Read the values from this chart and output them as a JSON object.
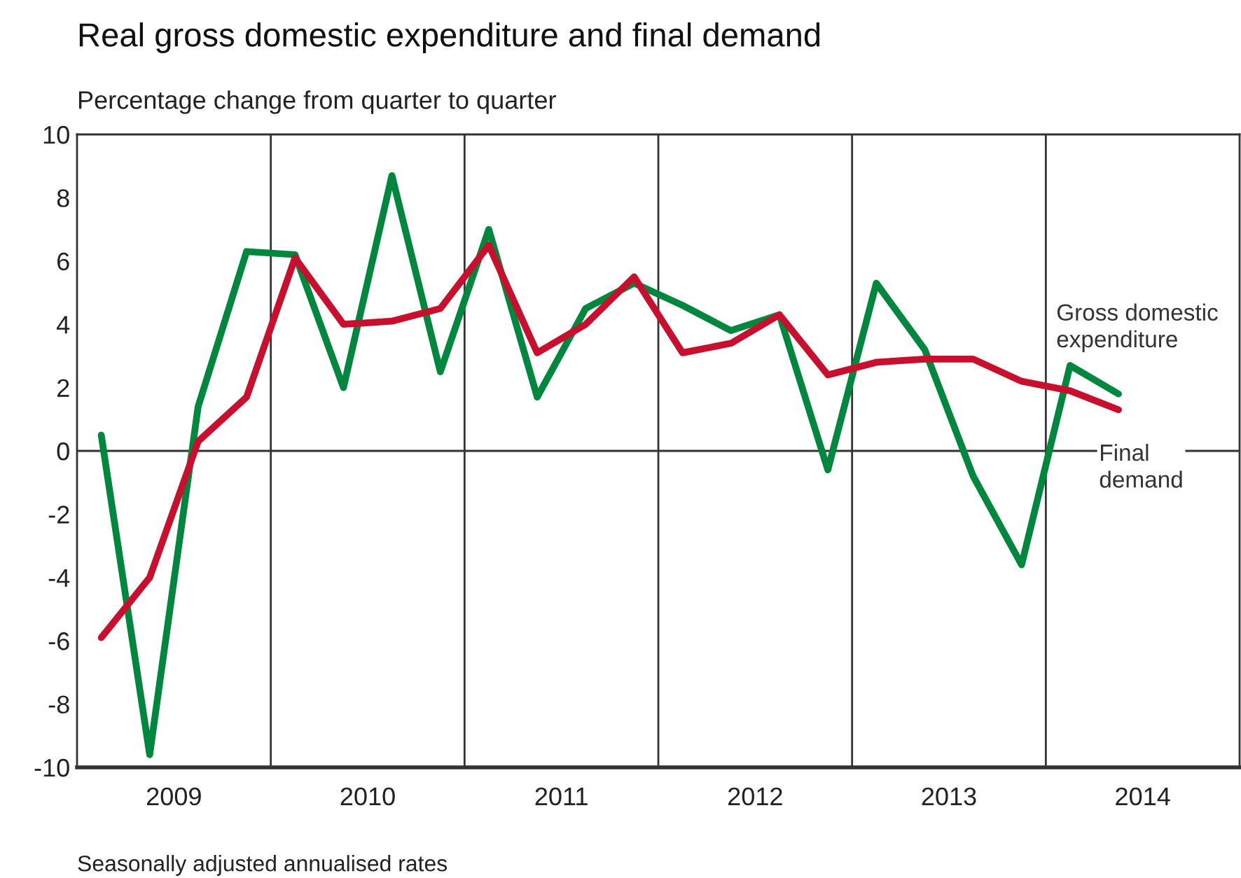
{
  "chart_data": {
    "type": "line",
    "title": "Real gross domestic expenditure and final demand",
    "ylabel": "Percentage change from quarter to quarter",
    "annotations": [
      "Seasonally adjusted annualised rates"
    ],
    "x": [
      2009.125,
      2009.375,
      2009.625,
      2009.875,
      2010.125,
      2010.375,
      2010.625,
      2010.875,
      2011.125,
      2011.375,
      2011.625,
      2011.875,
      2012.125,
      2012.375,
      2012.625,
      2012.875,
      2013.125,
      2013.375,
      2013.625,
      2013.875,
      2014.125,
      2014.375
    ],
    "series": [
      {
        "name": "Gross domestic expenditure",
        "color": "#00873e",
        "values": [
          0.5,
          -9.6,
          1.4,
          6.3,
          6.2,
          2.0,
          8.7,
          2.5,
          7.0,
          1.7,
          4.5,
          5.3,
          4.6,
          3.8,
          4.3,
          -0.6,
          5.3,
          3.2,
          -0.8,
          -3.6,
          2.7,
          1.8
        ]
      },
      {
        "name": "Final demand",
        "color": "#c8102e",
        "values": [
          -5.9,
          -4.0,
          0.3,
          1.7,
          6.1,
          4.0,
          4.1,
          4.5,
          6.5,
          3.1,
          4.0,
          5.5,
          3.1,
          3.4,
          4.3,
          2.4,
          2.8,
          2.9,
          2.9,
          2.2,
          1.9,
          1.3
        ]
      }
    ],
    "xlim": [
      2009,
      2015
    ],
    "xticks": [
      {
        "value": 2009.5,
        "label": "2009"
      },
      {
        "value": 2010.5,
        "label": "2010"
      },
      {
        "value": 2011.5,
        "label": "2011"
      },
      {
        "value": 2012.5,
        "label": "2012"
      },
      {
        "value": 2013.5,
        "label": "2013"
      },
      {
        "value": 2014.5,
        "label": "2014"
      }
    ],
    "ylim": [
      -10,
      10
    ],
    "yticks": [
      -10,
      -8,
      -6,
      -4,
      -2,
      0,
      2,
      4,
      6,
      8,
      10
    ],
    "ref_lines": [
      {
        "axis": "y",
        "value": 0,
        "color": "#333333"
      },
      {
        "axis": "x",
        "value": 2010,
        "color": "#333333"
      },
      {
        "axis": "x",
        "value": 2011,
        "color": "#333333"
      },
      {
        "axis": "x",
        "value": 2012,
        "color": "#333333"
      },
      {
        "axis": "x",
        "value": 2013,
        "color": "#333333"
      },
      {
        "axis": "x",
        "value": 2014,
        "color": "#333333"
      }
    ],
    "grid": false,
    "legend": false,
    "marker": "none",
    "line_style": "solid"
  }
}
